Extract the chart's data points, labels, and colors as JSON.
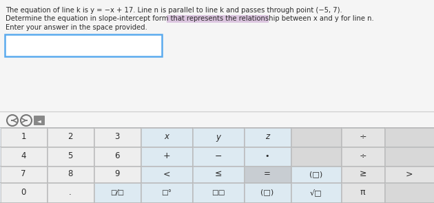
{
  "bg_top": "#f2f2f2",
  "bg_keyboard": "#e2e8ee",
  "cell_num": "#f0f0f0",
  "cell_sym_light": "#dde8f0",
  "cell_sym_dark": "#c8cdd4",
  "cell_right_light": "#e8e8e8",
  "cell_right_mid": "#d0d0d0",
  "cell_right_dark": "#c0c0c0",
  "answer_border": "#5aaaee",
  "text_color": "#2a2a2a",
  "highlight_bg": "#c8a0d0",
  "line1": "The equation of line k is y = −x + 17. Line n is parallel to line k and passes through point (−5, 7).",
  "line2": "Determine the equation in slope-intercept form that represents the relationship between x and y for line n.",
  "line3": "Enter your answer in the space provided.",
  "keyboard": {
    "row0": [
      "1",
      "2",
      "3",
      "x",
      "y",
      "z",
      "",
      "÷",
      ""
    ],
    "row1": [
      "4",
      "5",
      "6",
      "+",
      "−",
      "•",
      "",
      "÷",
      ""
    ],
    "row2": [
      "7",
      "8",
      "9",
      "<",
      "≤",
      "=",
      "(□)",
      "√□",
      "π"
    ],
    "row3": [
      "0",
      ".",
      "□/□",
      "□°",
      "□□",
      "",
      "",
      "",
      ""
    ]
  }
}
